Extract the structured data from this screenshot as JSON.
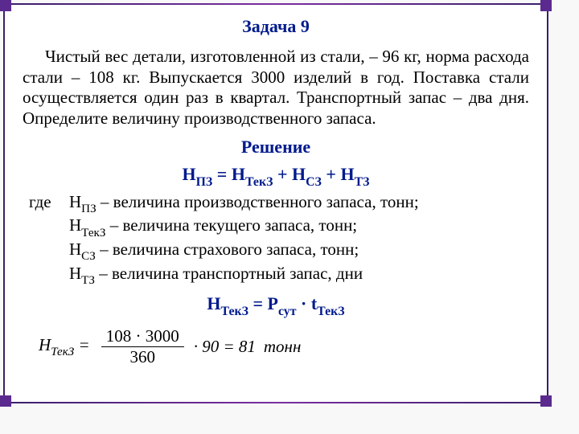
{
  "title": "Задача 9",
  "problem": "Чистый вес детали, изготовленной из стали, – 96 кг, норма расхода стали – 108 кг. Выпускается 3000 изделий в год. Поставка стали осуществляется один раз в квартал. Транспортный запас – два дня. Определите величину производственного запаса.",
  "solution_title": "Решение",
  "formula1_parts": {
    "lhs": "Н",
    "lhs_sub": "ПЗ",
    "eq": " = ",
    "t1": "Н",
    "t1_sub": "ТекЗ",
    "plus1": " + ",
    "t2": "Н",
    "t2_sub": "СЗ",
    "plus2": " + ",
    "t3": "Н",
    "t3_sub": "ТЗ"
  },
  "defs_label": "где",
  "defs": [
    {
      "sym": "Н",
      "sub": "ПЗ",
      "txt": " – величина производственного запаса, тонн;"
    },
    {
      "sym": "Н",
      "sub": "ТекЗ",
      "txt": " – величина текущего запаса, тонн;"
    },
    {
      "sym": "Н",
      "sub": "СЗ",
      "txt": " – величина страхового запаса, тонн;"
    },
    {
      "sym": "Н",
      "sub": "ТЗ",
      "txt": " – величина транспортный запас, дни"
    }
  ],
  "formula2_parts": {
    "lhs": "Н",
    "lhs_sub": "ТекЗ",
    "eq": " = ",
    "a": "Р",
    "a_sub": "сут",
    "dot": " · ",
    "b": "t",
    "b_sub": "ТекЗ"
  },
  "calc": {
    "lhs": "Н",
    "lhs_sub": "ТекЗ",
    "numerator": "108 · 3000",
    "denominator": "360",
    "after": "· 90 = 81",
    "unit": "тонн"
  }
}
